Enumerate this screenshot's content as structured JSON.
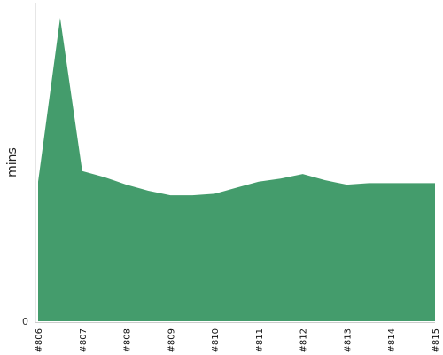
{
  "chart_data": {
    "type": "area",
    "title": "",
    "xlabel": "",
    "ylabel": "mins",
    "y_tick_labels": [
      "0"
    ],
    "ylim": [
      0,
      10.5
    ],
    "grid": false,
    "legend": "none",
    "color": "#449c6c",
    "categories": [
      "#806",
      "#807",
      "#808",
      "#809",
      "#810",
      "#811",
      "#812",
      "#813",
      "#814",
      "#815"
    ],
    "x": [
      0,
      0.5,
      1,
      1.5,
      2,
      2.5,
      3,
      3.5,
      4,
      4.5,
      5,
      5.5,
      6,
      6.5,
      7,
      7.5,
      8,
      8.5,
      9
    ],
    "y": [
      4.6,
      10.0,
      4.95,
      4.75,
      4.5,
      4.3,
      4.15,
      4.15,
      4.2,
      4.4,
      4.6,
      4.7,
      4.85,
      4.65,
      4.5,
      4.55,
      4.55,
      4.55,
      4.55
    ]
  }
}
